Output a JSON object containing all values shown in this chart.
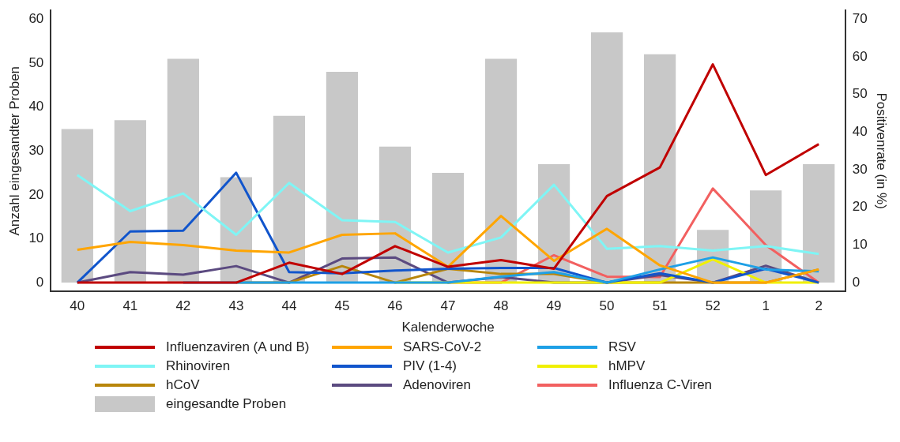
{
  "chart_data": {
    "type": "bar",
    "xlabel": "Kalenderwoche",
    "ylabel": "Anzahl eingesandter Proben",
    "y2label": "Positivenrate (in %)",
    "categories": [
      "40",
      "41",
      "42",
      "43",
      "44",
      "45",
      "46",
      "47",
      "48",
      "49",
      "50",
      "51",
      "52",
      "1",
      "2"
    ],
    "series": [
      {
        "name": "Influenzaviren (A und B)",
        "type": "line",
        "axis": "y2",
        "color": "#c00000",
        "values": [
          0,
          0,
          0,
          0,
          5.3,
          2.3,
          9.7,
          4.2,
          6,
          3.7,
          23,
          30.6,
          58,
          28.6,
          36.8
        ]
      },
      {
        "name": "SARS-CoV-2",
        "type": "line",
        "axis": "y2",
        "color": "#ffa500",
        "values": [
          8.7,
          10.8,
          10,
          8.5,
          8,
          12.7,
          13.1,
          4.2,
          17.7,
          5.8,
          14.3,
          4.6,
          0,
          0,
          3.5
        ]
      },
      {
        "name": "RSV",
        "type": "line",
        "axis": "y2",
        "color": "#1ea0e6",
        "values": [
          null,
          null,
          0,
          0,
          0,
          0,
          0,
          0,
          1.6,
          2.8,
          0,
          3.5,
          6.7,
          3.5,
          3
        ]
      },
      {
        "name": "Rhinoviren",
        "type": "line",
        "axis": "y2",
        "color": "#7ff5f5",
        "values": [
          28.6,
          19,
          23.7,
          12.7,
          26.5,
          16.6,
          16.1,
          8,
          12,
          26,
          9,
          9.7,
          8.5,
          9.7,
          7.6
        ]
      },
      {
        "name": "PIV (1-4)",
        "type": "line",
        "axis": "y2",
        "color": "#1155cc",
        "values": [
          0,
          13.6,
          13.8,
          29.2,
          2.8,
          2.5,
          3.2,
          3.7,
          3.9,
          3.9,
          0,
          2.5,
          0,
          3.7,
          0
        ]
      },
      {
        "name": "hMPV",
        "type": "line",
        "axis": "y2",
        "color": "#f0f000",
        "values": [
          null,
          null,
          null,
          null,
          null,
          null,
          0,
          0,
          0,
          0,
          0,
          0,
          6.2,
          0,
          0
        ]
      },
      {
        "name": "hCoV",
        "type": "line",
        "axis": "y2",
        "color": "#b8860b",
        "values": [
          null,
          null,
          null,
          0,
          0,
          4.4,
          0,
          3.7,
          2.3,
          2.3,
          0,
          0,
          0,
          0,
          3.5
        ]
      },
      {
        "name": "Adenoviren",
        "type": "line",
        "axis": "y2",
        "color": "#5b4a80",
        "values": [
          0,
          2.8,
          2.1,
          4.4,
          0,
          6.4,
          6.7,
          0,
          1.5,
          0,
          0,
          2,
          0,
          4.5,
          0
        ]
      },
      {
        "name": "Influenza C-Viren",
        "type": "line",
        "axis": "y2",
        "color": "#f26060",
        "values": [
          null,
          null,
          null,
          null,
          null,
          null,
          null,
          0,
          0,
          7.3,
          1.6,
          1.5,
          25,
          10,
          0
        ]
      },
      {
        "name": "eingesandte Proben",
        "axis": "y",
        "color": "#c8c8c8",
        "values": [
          35,
          37,
          51,
          24,
          38,
          48,
          31,
          25,
          51,
          27,
          57,
          52,
          12,
          21,
          27
        ]
      }
    ],
    "ylim": [
      -2,
      62
    ],
    "yticks": [
      0,
      10,
      20,
      30,
      40,
      50,
      60
    ],
    "y2lim": [
      -2.33,
      72.33
    ],
    "y2ticks": [
      0,
      10,
      20,
      30,
      40,
      50,
      60,
      70
    ],
    "grid": false,
    "legend": "bottom",
    "marker": "none",
    "line_style": "solid"
  }
}
